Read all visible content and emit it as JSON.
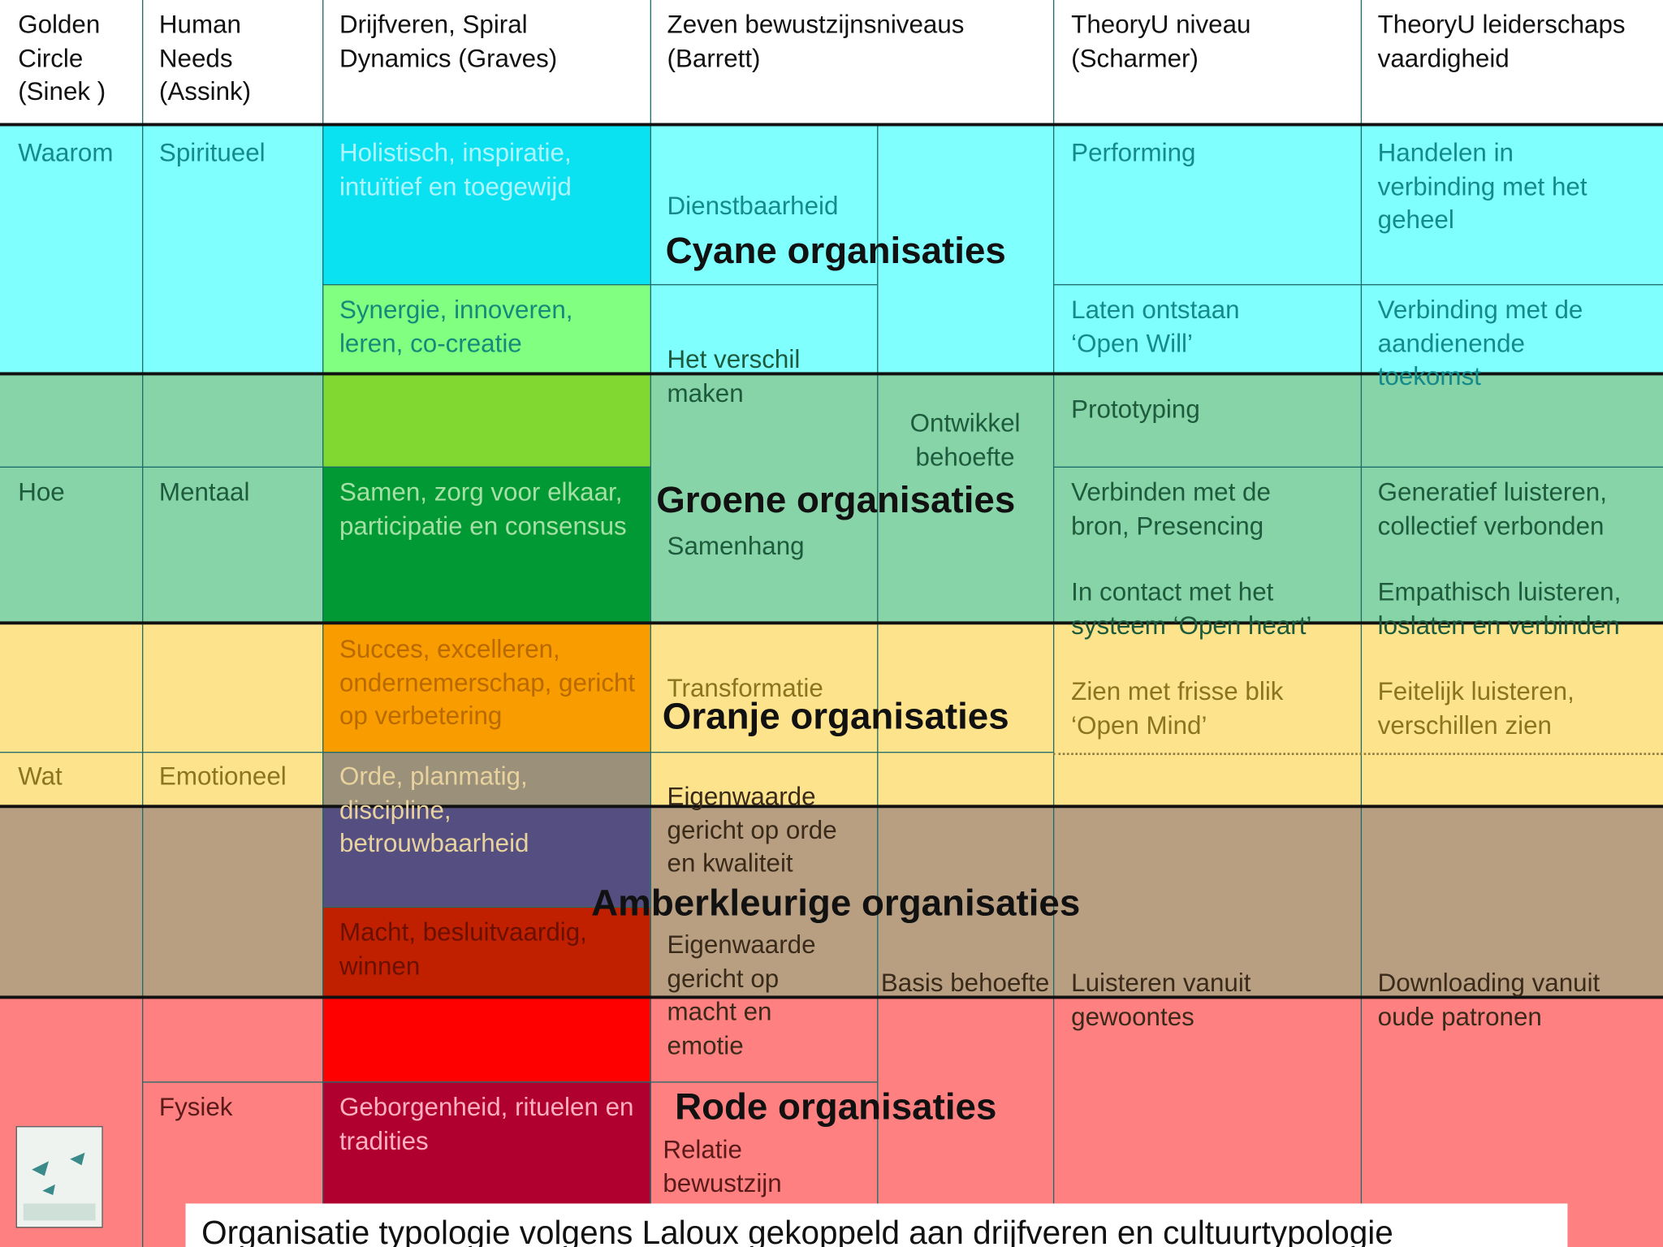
{
  "header": [
    "Golden Circle (Sinek )",
    "Human Needs (Assink)",
    "Drijfveren, Spiral Dynamics (Graves)",
    "Zeven bewustzijnsniveaus (Barrett)",
    "TheoryU niveau (Scharmer)",
    "TheoryU leiderschaps vaardigheid"
  ],
  "golden_circle": [
    "Waarom",
    "Hoe",
    "Wat"
  ],
  "human_needs": [
    "Spiritueel",
    "Mentaal",
    "Emotioneel",
    "Fysiek"
  ],
  "drijfveren": [
    "Holistisch, inspiratie, intuïtief en toegewijd",
    "Synergie, innoveren, leren, co-creatie",
    "Samen, zorg voor elkaar, participatie en consensus",
    "Succes, excelleren, ondernemerschap, gericht op verbetering",
    "Orde, planmatig, discipline, betrouwbaarheid",
    "Macht, besluitvaardig, winnen",
    "Geborgenheid, rituelen en tradities"
  ],
  "barrett": [
    "Dienstbaarheid",
    "Het verschil maken",
    "Samenhang",
    "Transformatie",
    "Eigenwaarde gericht op orde en kwaliteit",
    "Eigenwaarde gericht op macht en emotie",
    "Relatie bewustzijn"
  ],
  "behoefte": [
    "Ontwikkel behoefte",
    "Basis behoefte"
  ],
  "theoryu_niveau": [
    "Performing",
    "Laten ontstaan ‘Open Will’",
    "Prototyping",
    "Verbinden met de bron, Presencing",
    "In contact met het systeem ‘Open heart’",
    "Zien met frisse blik ‘Open Mind’",
    "Luisteren vanuit gewoontes"
  ],
  "theoryu_vaardigheid": [
    "Handelen in verbinding met het geheel",
    "Verbinding met de aandienende toekomst",
    "Generatief luisteren, collectief  verbonden",
    "Empathisch luisteren, loslaten en verbinden",
    "Feitelijk luisteren, verschillen zien",
    "Downloading vanuit oude patronen"
  ],
  "organisations": [
    "Cyane organisaties",
    "Groene organisaties",
    "Oranje organisaties",
    "Amberkleurige organisaties",
    "Rode organisaties"
  ],
  "caption": "Organisatie typologie volgens Laloux gekoppeld aan drijfveren en cultuurtypologie"
}
